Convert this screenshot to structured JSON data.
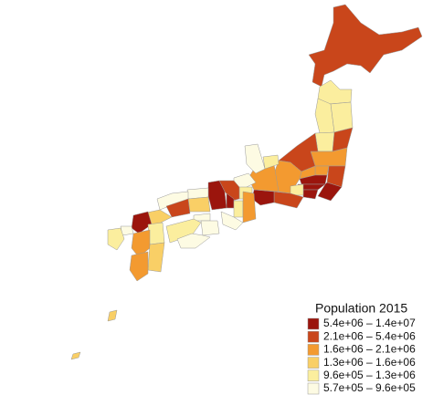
{
  "legend": {
    "title": "Population 2015",
    "items": [
      {
        "label": "5.4e+06 – 1.4e+07",
        "color": "#9b150d"
      },
      {
        "label": "2.1e+06 – 5.4e+06",
        "color": "#c9461b"
      },
      {
        "label": "1.6e+06 – 2.1e+06",
        "color": "#f39a30"
      },
      {
        "label": "1.3e+06 – 1.6e+06",
        "color": "#f9cf66"
      },
      {
        "label": "9.6e+05 – 1.3e+06",
        "color": "#fbee9e"
      },
      {
        "label": "5.7e+05 – 9.6e+05",
        "color": "#fdfbe3"
      }
    ]
  }
}
